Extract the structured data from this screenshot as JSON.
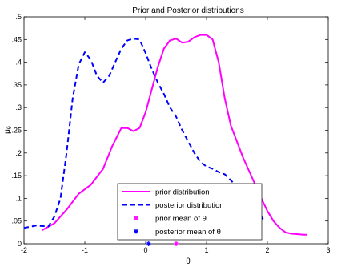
{
  "chart_data": {
    "type": "line",
    "title": "Prior and Posterior distributions",
    "xlabel": "θ",
    "ylabel": "μθ",
    "ylabel_main": "μ",
    "ylabel_sub": "θ",
    "xlim": [
      -2,
      3
    ],
    "ylim": [
      0,
      0.5
    ],
    "xticks": [
      -2,
      -1,
      0,
      1,
      2,
      3
    ],
    "yticks": [
      0,
      0.05,
      0.1,
      0.15,
      0.2,
      0.25,
      0.3,
      0.35,
      0.4,
      0.45,
      0.5
    ],
    "grid": false,
    "legend_position": "bottom-center",
    "series": [
      {
        "name": "prior distribution",
        "color": "#ff00ff",
        "style": "solid",
        "x": [
          -1.7,
          -1.5,
          -1.3,
          -1.1,
          -0.9,
          -0.7,
          -0.55,
          -0.4,
          -0.3,
          -0.2,
          -0.1,
          0.0,
          0.1,
          0.2,
          0.3,
          0.4,
          0.5,
          0.6,
          0.7,
          0.8,
          0.9,
          1.0,
          1.1,
          1.2,
          1.3,
          1.4,
          1.5,
          1.6,
          1.7,
          1.8,
          1.9,
          2.0,
          2.1,
          2.2,
          2.3,
          2.4,
          2.5,
          2.6,
          2.65
        ],
        "y": [
          0.03,
          0.045,
          0.075,
          0.11,
          0.13,
          0.165,
          0.215,
          0.255,
          0.255,
          0.248,
          0.255,
          0.29,
          0.34,
          0.39,
          0.43,
          0.448,
          0.452,
          0.443,
          0.445,
          0.455,
          0.46,
          0.46,
          0.45,
          0.4,
          0.32,
          0.26,
          0.225,
          0.19,
          0.16,
          0.13,
          0.1,
          0.072,
          0.05,
          0.035,
          0.025,
          0.022,
          0.021,
          0.02,
          0.02
        ]
      },
      {
        "name": "posterior distribution",
        "color": "#0000ff",
        "style": "dashed",
        "x": [
          -2.0,
          -1.8,
          -1.6,
          -1.5,
          -1.4,
          -1.3,
          -1.2,
          -1.1,
          -1.0,
          -0.9,
          -0.8,
          -0.7,
          -0.6,
          -0.5,
          -0.4,
          -0.3,
          -0.2,
          -0.1,
          0.0,
          0.1,
          0.2,
          0.3,
          0.4,
          0.5,
          0.6,
          0.7,
          0.8,
          0.9,
          1.0,
          1.1,
          1.2,
          1.3,
          1.4,
          1.5,
          1.6,
          1.7,
          1.8,
          1.9,
          1.95
        ],
        "y": [
          0.035,
          0.04,
          0.038,
          0.06,
          0.1,
          0.2,
          0.32,
          0.395,
          0.422,
          0.405,
          0.37,
          0.355,
          0.37,
          0.4,
          0.43,
          0.448,
          0.452,
          0.45,
          0.42,
          0.385,
          0.355,
          0.33,
          0.3,
          0.28,
          0.25,
          0.225,
          0.2,
          0.18,
          0.17,
          0.165,
          0.158,
          0.153,
          0.14,
          0.125,
          0.11,
          0.09,
          0.075,
          0.06,
          0.05
        ]
      }
    ],
    "markers": [
      {
        "name": "prior mean of θ",
        "color": "#ff00ff",
        "symbol": "*",
        "x": 0.5,
        "y": 0.0
      },
      {
        "name": "posterior mean of θ",
        "color": "#0000ff",
        "symbol": "*",
        "x": 0.05,
        "y": 0.0
      }
    ]
  }
}
